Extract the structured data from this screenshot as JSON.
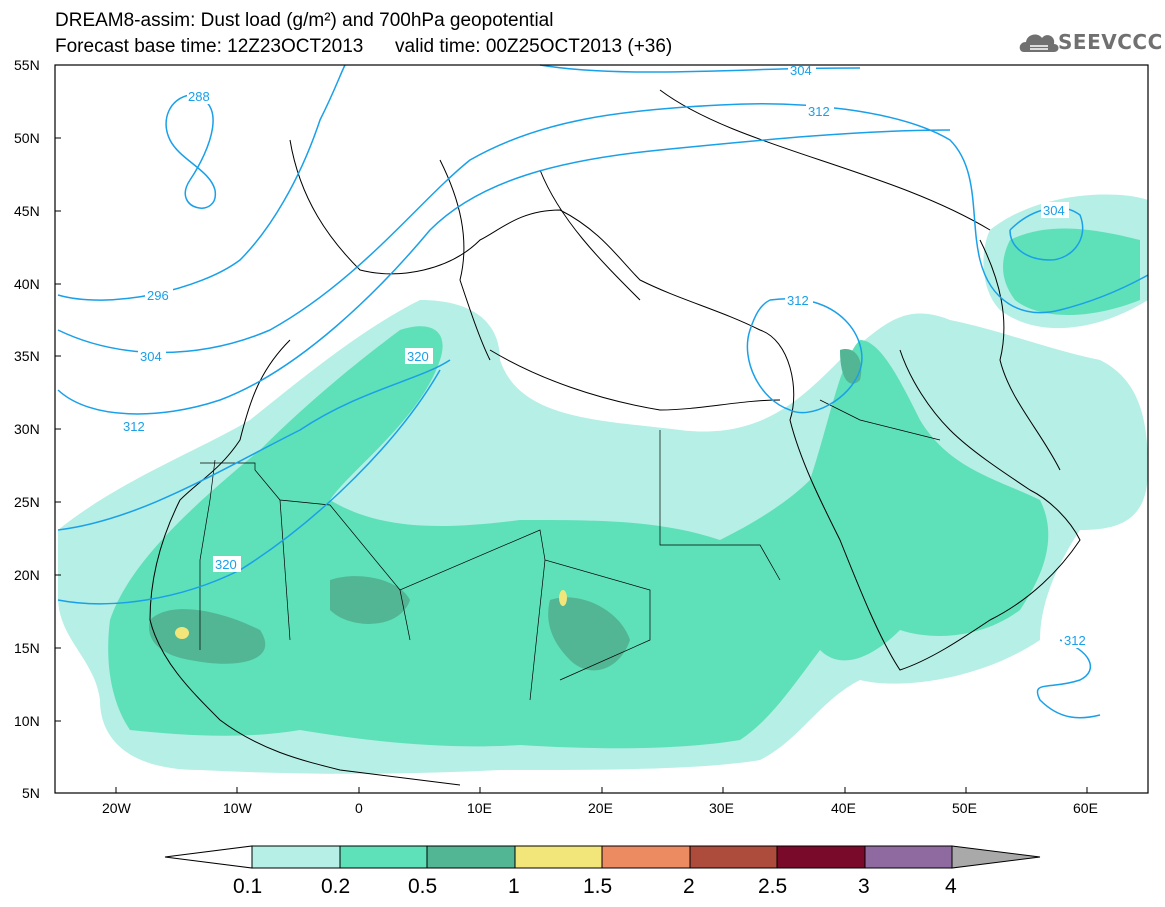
{
  "title_line1": "DREAM8-assim: Dust load (g/m²) and 700hPa geopotential",
  "title_line2": "Forecast base time: 12Z23OCT2013      valid time: 00Z25OCT2013 (+36)",
  "logo_text": "SEEVCCC",
  "map": {
    "lat_labels": [
      "55N",
      "50N",
      "45N",
      "40N",
      "35N",
      "30N",
      "25N",
      "20N",
      "15N",
      "10N",
      "5N"
    ],
    "lon_labels": [
      "20W",
      "10W",
      "0",
      "10E",
      "20E",
      "30E",
      "40E",
      "50E",
      "60E"
    ],
    "extent": {
      "lon_min": -25,
      "lon_max": 65,
      "lat_min": 5,
      "lat_max": 55
    },
    "contour_labels": [
      "288",
      "296",
      "304",
      "312",
      "320",
      "320",
      "304",
      "312",
      "312",
      "304",
      "312"
    ],
    "contour_color": "#1aa0e8"
  },
  "colorbar": {
    "labels": [
      "0.1",
      "0.2",
      "0.5",
      "1",
      "1.5",
      "2",
      "2.5",
      "3",
      "4"
    ],
    "colors": [
      "#b5efe5",
      "#5ee0b8",
      "#52b594",
      "#f2e67a",
      "#ec8a62",
      "#ad4c3c",
      "#7a0a2a",
      "#8f6aa0",
      "#a9a9a9"
    ]
  }
}
